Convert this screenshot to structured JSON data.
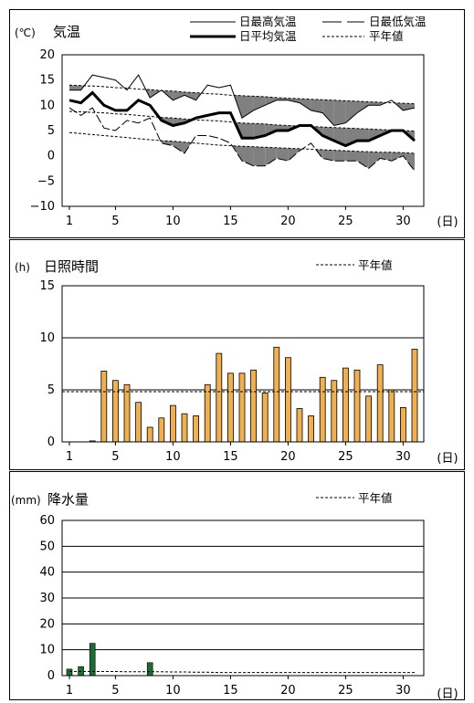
{
  "chart_data": [
    {
      "type": "line",
      "title": "気温",
      "unit": "(℃)",
      "xlabel": "(日)",
      "ylim": [
        -10,
        20
      ],
      "yticks": [
        "20",
        "15",
        "10",
        "5",
        "0",
        "−5",
        "−10"
      ],
      "xticks": [
        "1",
        "5",
        "10",
        "15",
        "20",
        "25",
        "30"
      ],
      "x": [
        1,
        2,
        3,
        4,
        5,
        6,
        7,
        8,
        9,
        10,
        11,
        12,
        13,
        14,
        15,
        16,
        17,
        18,
        19,
        20,
        21,
        22,
        23,
        24,
        25,
        26,
        27,
        28,
        29,
        30,
        31
      ],
      "legend": {
        "max": "日最高気温",
        "min": "日最低気温",
        "mean": "日平均気温",
        "normal": "平年値"
      },
      "series": [
        {
          "name": "日最高気温",
          "values": [
            13,
            13,
            16,
            15.5,
            15,
            13,
            16,
            11.5,
            13,
            11,
            12,
            11,
            14,
            13.5,
            14,
            7.5,
            9,
            10,
            11,
            11,
            10.5,
            9,
            8.5,
            6,
            6.5,
            8.5,
            10,
            10,
            11,
            9,
            9.5
          ]
        },
        {
          "name": "日最低気温",
          "values": [
            9.5,
            8,
            9.5,
            5.5,
            5,
            7,
            6.5,
            7.5,
            2.5,
            2,
            0.5,
            4,
            4,
            3.5,
            2.5,
            -1,
            -2,
            -2,
            -0.5,
            -1,
            1,
            2.5,
            -0.5,
            -1,
            -1,
            -1,
            -2.5,
            -0.5,
            -1,
            0,
            -3
          ]
        },
        {
          "name": "日平均気温",
          "values": [
            11,
            10.5,
            12.5,
            10,
            9,
            9,
            11,
            10,
            7,
            6,
            6.5,
            7.5,
            8,
            8.5,
            8.5,
            3.5,
            3.5,
            4,
            5,
            5,
            6,
            6,
            4,
            3,
            2,
            3,
            3,
            4,
            5,
            5,
            3
          ]
        },
        {
          "name": "平年値(最高)",
          "values": [
            14,
            13.9,
            13.8,
            13.7,
            13.5,
            13.4,
            13.2,
            13.1,
            12.9,
            12.8,
            12.6,
            12.5,
            12.3,
            12.2,
            12,
            11.9,
            11.8,
            11.7,
            11.5,
            11.4,
            11.3,
            11.2,
            11.1,
            11,
            10.9,
            10.8,
            10.7,
            10.6,
            10.5,
            10.4,
            10.3
          ]
        },
        {
          "name": "平年値(平均)",
          "values": [
            8.8,
            8.7,
            8.6,
            8.5,
            8.3,
            8.2,
            8,
            7.8,
            7.6,
            7.5,
            7.3,
            7.1,
            7,
            6.9,
            6.7,
            6.5,
            6.4,
            6.3,
            6.1,
            6,
            5.9,
            5.8,
            5.7,
            5.6,
            5.5,
            5.4,
            5.3,
            5.2,
            5.1,
            5,
            4.9
          ]
        },
        {
          "name": "平年値(最低)",
          "values": [
            4.6,
            4.4,
            4.2,
            4,
            3.8,
            3.6,
            3.4,
            3.2,
            3,
            2.9,
            2.7,
            2.5,
            2.3,
            2.1,
            2,
            1.9,
            1.8,
            1.7,
            1.6,
            1.5,
            1.4,
            1.3,
            1.2,
            1.1,
            1,
            0.9,
            0.8,
            0.7,
            0.7,
            0.6,
            0.5
          ]
        }
      ]
    },
    {
      "type": "bar",
      "title": "日照時間",
      "unit": "(h)",
      "xlabel": "(日)",
      "ylim": [
        0,
        15
      ],
      "yticks": [
        "15",
        "10",
        "5",
        "0"
      ],
      "xticks": [
        "1",
        "5",
        "10",
        "15",
        "20",
        "25",
        "30"
      ],
      "legend": {
        "normal": "平年値"
      },
      "normal": 5,
      "bar_color": "#f0b050",
      "x": [
        1,
        2,
        3,
        4,
        5,
        6,
        7,
        8,
        9,
        10,
        11,
        12,
        13,
        14,
        15,
        16,
        17,
        18,
        19,
        20,
        21,
        22,
        23,
        24,
        25,
        26,
        27,
        28,
        29,
        30,
        31
      ],
      "values": [
        0,
        0,
        0.1,
        6.8,
        5.9,
        5.5,
        3.8,
        1.4,
        2.3,
        3.5,
        2.7,
        2.5,
        5.5,
        8.5,
        6.6,
        6.6,
        6.9,
        4.7,
        9.1,
        8.1,
        3.2,
        2.5,
        6.2,
        5.9,
        7.1,
        6.9,
        4.4,
        7.4,
        5,
        3.3,
        8.9
      ]
    },
    {
      "type": "bar",
      "title": "降水量",
      "unit": "(mm)",
      "xlabel": "(日)",
      "ylim": [
        0,
        60
      ],
      "yticks": [
        "60",
        "50",
        "40",
        "30",
        "20",
        "10",
        "0"
      ],
      "xticks": [
        "1",
        "5",
        "10",
        "15",
        "20",
        "25",
        "30"
      ],
      "legend": {
        "normal": "平年値"
      },
      "bar_color": "#1f6b34",
      "x": [
        1,
        2,
        3,
        4,
        5,
        6,
        7,
        8,
        9,
        10,
        11,
        12,
        13,
        14,
        15,
        16,
        17,
        18,
        19,
        20,
        21,
        22,
        23,
        24,
        25,
        26,
        27,
        28,
        29,
        30,
        31
      ],
      "values": [
        2.5,
        3.5,
        12.5,
        0,
        0,
        0,
        0,
        5,
        0,
        0,
        0,
        0,
        0,
        0,
        0,
        0,
        0,
        0,
        0,
        0,
        0,
        0,
        0,
        0,
        0,
        0,
        0,
        0,
        0,
        0,
        0
      ],
      "normal": [
        1.6,
        1.6,
        1.6,
        1.6,
        1.6,
        1.5,
        1.5,
        1.5,
        1.5,
        1.4,
        1.4,
        1.3,
        1.3,
        1.2,
        1.2,
        1.2,
        1.2,
        1.2,
        1.2,
        1.2,
        1.2,
        1.2,
        1.2,
        1.2,
        1.2,
        1.2,
        1.2,
        1.2,
        1.2,
        1.2,
        1.2
      ]
    }
  ]
}
